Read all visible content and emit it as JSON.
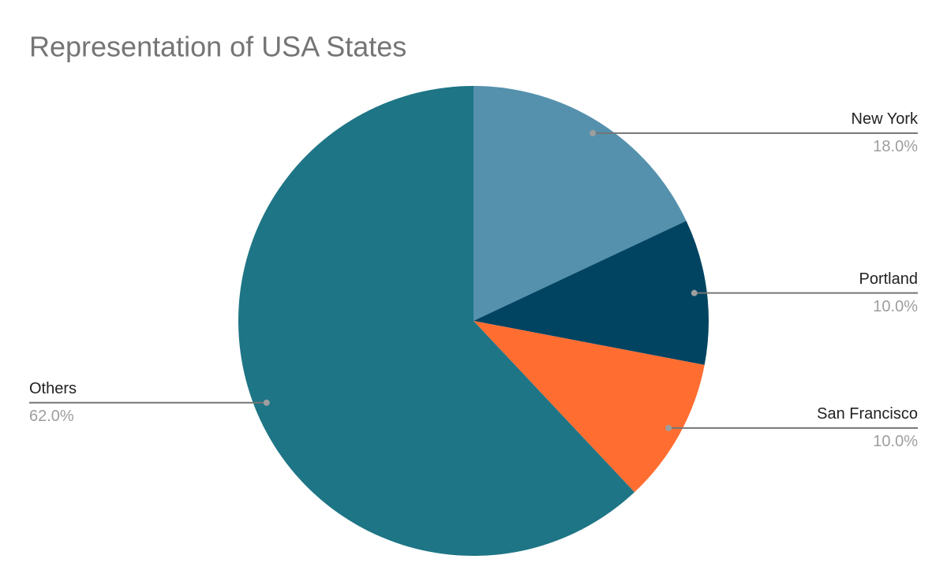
{
  "chart_data": {
    "type": "pie",
    "title": "Representation of USA States",
    "categories": [
      "New York",
      "Portland",
      "San Francisco",
      "Others"
    ],
    "values": [
      18,
      10,
      10,
      62
    ],
    "value_labels": [
      "18.0%",
      "10.0%",
      "10.0%",
      "62.0%"
    ],
    "colors": [
      "#5591ad",
      "#004462",
      "#ff6d31",
      "#1e7585"
    ]
  }
}
